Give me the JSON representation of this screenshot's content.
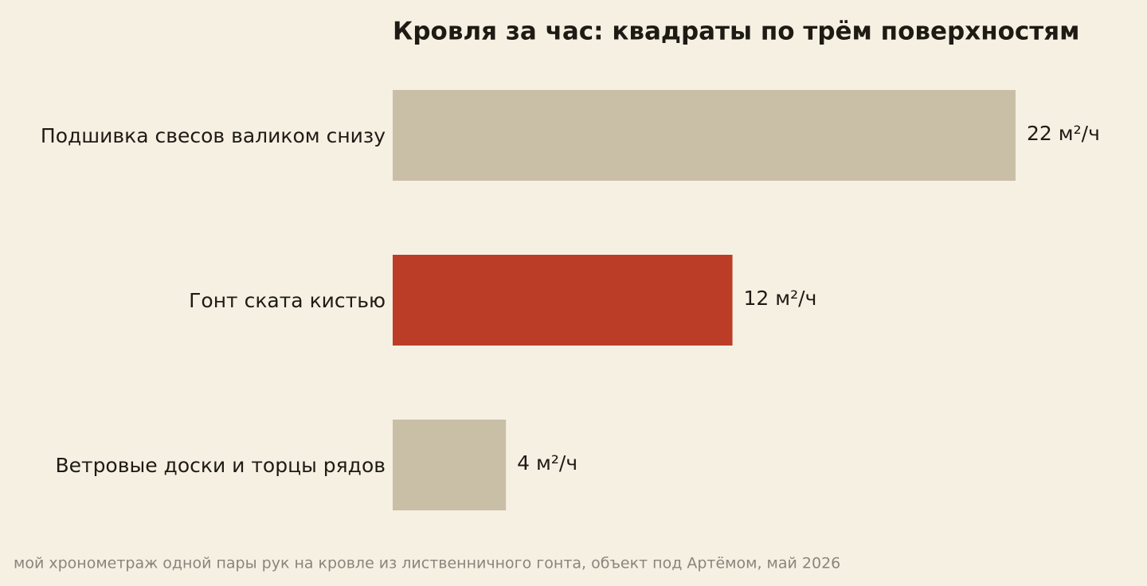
{
  "chart_data": {
    "type": "barh",
    "title": "Кровля за час: квадраты по трём поверхностям",
    "categories": [
      "Подшивка свесов валиком снизу",
      "Гонт ската кистью",
      "Ветровые доски и торцы рядов"
    ],
    "values": [
      22,
      12,
      4
    ],
    "value_labels": [
      "22 м²/ч",
      "12 м²/ч",
      "4 м²/ч"
    ],
    "colors": [
      "#c9bfa7",
      "#bc3d27",
      "#c9bfa7"
    ],
    "note": "мой хронометраж одной пары рук на кровле из лиственничного гонта, объект под Артёмом, май 2026"
  }
}
